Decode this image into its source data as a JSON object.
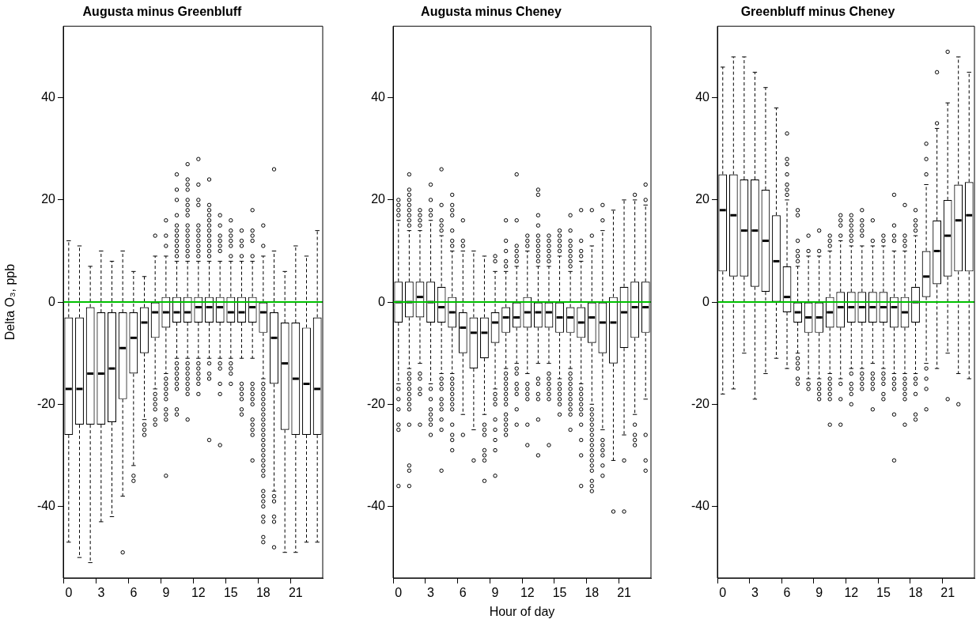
{
  "chart_data": [
    {
      "type": "box",
      "title": "Augusta minus Greenbluff",
      "ylabel": "Delta O₃, ppb",
      "categories": [
        "0",
        null,
        null,
        "3",
        null,
        null,
        "6",
        null,
        null,
        "9",
        null,
        null,
        "12",
        null,
        null,
        "15",
        null,
        null,
        "18",
        null,
        null,
        "21",
        null,
        null
      ],
      "ylim": [
        -54,
        54
      ],
      "yticks": [
        -40,
        -20,
        0,
        20,
        40
      ],
      "ref_lines": [
        {
          "axis": "y",
          "value": 0,
          "color": "#00c000"
        }
      ],
      "boxes": [
        {
          "low": -47,
          "q1": -26,
          "median": -17,
          "q3": -3,
          "high": 12
        },
        {
          "low": -50,
          "q1": -24,
          "median": -17,
          "q3": -3,
          "high": 11
        },
        {
          "low": -51,
          "q1": -24,
          "median": -14,
          "q3": -1,
          "high": 7
        },
        {
          "low": -43,
          "q1": -24,
          "median": -14,
          "q3": -2,
          "high": 10
        },
        {
          "low": -42,
          "q1": -23.5,
          "median": -13,
          "q3": -2,
          "high": 8
        },
        {
          "low": -38,
          "q1": -19,
          "median": -9,
          "q3": -2,
          "high": 10,
          "outliers": [
            -49
          ]
        },
        {
          "low": -32,
          "q1": -14,
          "median": -7,
          "q3": -2,
          "high": 6,
          "outliers": [
            -34,
            -35
          ]
        },
        {
          "low": -23,
          "q1": -10,
          "median": -4,
          "q3": -1,
          "high": 5,
          "outliers": [
            -24,
            -25,
            -26
          ]
        },
        {
          "low": -17,
          "q1": -7,
          "median": -2,
          "q3": 0,
          "high": 9,
          "outliers": [
            13,
            -18,
            -19,
            -20,
            -21,
            -23,
            -24
          ]
        },
        {
          "low": -14,
          "q1": -5,
          "median": -2,
          "q3": 1,
          "high": 9,
          "outliers": [
            16,
            13,
            11,
            -15,
            -16,
            -17,
            -18,
            -19,
            -21,
            -22,
            -23,
            -34
          ]
        },
        {
          "low": -11,
          "q1": -4,
          "median": -2,
          "q3": 1,
          "high": 8,
          "outliers": [
            25,
            22,
            20,
            17,
            15,
            14,
            13,
            12,
            11,
            10,
            9,
            -12,
            -13,
            -14,
            -15,
            -16,
            -17,
            -21,
            -22
          ]
        },
        {
          "low": -11,
          "q1": -4,
          "median": -2,
          "q3": 1,
          "high": 8,
          "outliers": [
            27,
            24,
            23,
            22,
            20,
            19,
            18,
            17,
            15,
            14,
            13,
            12,
            11,
            10,
            9,
            -12,
            -13,
            -14,
            -15,
            -16,
            -17,
            -18,
            -23
          ]
        },
        {
          "low": -11,
          "q1": -4,
          "median": -1,
          "q3": 1,
          "high": 8,
          "outliers": [
            28,
            23,
            20,
            19,
            15,
            14,
            13,
            12,
            11,
            10,
            9,
            -12,
            -13,
            -14,
            -15,
            -16,
            -18
          ]
        },
        {
          "low": -11,
          "q1": -4,
          "median": -1,
          "q3": 1,
          "high": 8,
          "outliers": [
            24,
            19,
            18,
            17,
            16,
            15,
            14,
            13,
            12,
            11,
            10,
            9,
            -12,
            -14,
            -15,
            -27
          ]
        },
        {
          "low": -11,
          "q1": -4,
          "median": -1,
          "q3": 1,
          "high": 8,
          "outliers": [
            17,
            15,
            13,
            12,
            11,
            10,
            -12,
            -13,
            -16,
            -18,
            -28
          ]
        },
        {
          "low": -11,
          "q1": -4,
          "median": -2,
          "q3": 1,
          "high": 8,
          "outliers": [
            16,
            14,
            13,
            12,
            11,
            9,
            -12,
            -13,
            -14,
            -16
          ]
        },
        {
          "low": -11,
          "q1": -4,
          "median": -2,
          "q3": 1,
          "high": 8,
          "outliers": [
            14,
            12,
            11,
            9,
            -16,
            -17,
            -18,
            -19,
            -21,
            -22
          ]
        },
        {
          "low": -11,
          "q1": -4,
          "median": -1,
          "q3": 1,
          "high": 8,
          "outliers": [
            18,
            14,
            13,
            12,
            9,
            -16,
            -17,
            -18,
            -19,
            -20,
            -23,
            -24,
            -25,
            -26,
            -31
          ]
        },
        {
          "low": -15,
          "q1": -6,
          "median": -2,
          "q3": 0,
          "high": 9,
          "outliers": [
            15,
            11,
            -16,
            -17,
            -18,
            -19,
            -20,
            -21,
            -22,
            -23,
            -24,
            -25,
            -26,
            -27,
            -28,
            -29,
            -30,
            -31,
            -32,
            -33,
            -34,
            -37,
            -38,
            -39,
            -40,
            -42,
            -43,
            -46,
            -47
          ]
        },
        {
          "low": -37,
          "q1": -16,
          "median": -7,
          "q3": -2,
          "high": 10,
          "outliers": [
            26,
            -38,
            -39,
            -42,
            -43,
            -48
          ]
        },
        {
          "low": -49,
          "q1": -25,
          "median": -12,
          "q3": -4,
          "high": 6
        },
        {
          "low": -49,
          "q1": -26,
          "median": -15,
          "q3": -4,
          "high": 11
        },
        {
          "low": -47,
          "q1": -26,
          "median": -16,
          "q3": -5,
          "high": 9
        },
        {
          "low": -47,
          "q1": -26,
          "median": -17,
          "q3": -3,
          "high": 14
        }
      ]
    },
    {
      "type": "box",
      "title": "Augusta minus Cheney",
      "xlabel": "Hour of day",
      "categories": [
        "0",
        null,
        null,
        "3",
        null,
        null,
        "6",
        null,
        null,
        "9",
        null,
        null,
        "12",
        null,
        null,
        "15",
        null,
        null,
        "18",
        null,
        null,
        "21",
        null,
        null
      ],
      "ylim": [
        -54,
        54
      ],
      "yticks": [
        -40,
        -20,
        0,
        20,
        40
      ],
      "ref_lines": [
        {
          "axis": "y",
          "value": 0,
          "color": "#00c000"
        }
      ],
      "boxes": [
        {
          "low": -16,
          "q1": -4,
          "median": 0,
          "q3": 4,
          "high": 16,
          "outliers": [
            20,
            19,
            18,
            17,
            -17,
            -19,
            -21,
            -24,
            -25,
            -36
          ]
        },
        {
          "low": -13,
          "q1": -3,
          "median": 0,
          "q3": 4,
          "high": 14,
          "outliers": [
            25,
            22,
            21,
            20,
            19,
            18,
            17,
            16,
            15,
            -14,
            -15,
            -16,
            -17,
            -18,
            -19,
            -20,
            -21,
            -24,
            -32,
            -33,
            -36
          ]
        },
        {
          "low": -12,
          "q1": -3,
          "median": 1,
          "q3": 4,
          "high": 14,
          "outliers": [
            18,
            17,
            16,
            15,
            -14,
            -15,
            -17,
            -18,
            -24
          ]
        },
        {
          "low": -16,
          "q1": -4,
          "median": 0,
          "q3": 4,
          "high": 16,
          "outliers": [
            23,
            20,
            18,
            17,
            -17,
            -19,
            -21,
            -22,
            -23,
            -24,
            -26
          ]
        },
        {
          "low": -14,
          "q1": -4,
          "median": -1,
          "q3": 3,
          "high": 13,
          "outliers": [
            26,
            19,
            16,
            15,
            14,
            -15,
            -16,
            -17,
            -19,
            -20,
            -21,
            -23,
            -25,
            -33
          ]
        },
        {
          "low": -14,
          "q1": -5,
          "median": -2,
          "q3": 1,
          "high": 10,
          "outliers": [
            21,
            19,
            18,
            17,
            14,
            12,
            11,
            -15,
            -16,
            -17,
            -18,
            -19,
            -20,
            -21,
            -24,
            -26,
            -27,
            -29
          ]
        },
        {
          "low": -22,
          "q1": -10,
          "median": -5,
          "q3": -2,
          "high": 10,
          "outliers": [
            16,
            12,
            11,
            -26
          ]
        },
        {
          "low": -25,
          "q1": -13,
          "median": -6,
          "q3": -3,
          "high": 10,
          "outliers": [
            -31
          ]
        },
        {
          "low": -22,
          "q1": -11,
          "median": -6,
          "q3": -3,
          "high": 9,
          "outliers": [
            -24,
            -25,
            -26,
            -29,
            -30,
            -31,
            -35
          ]
        },
        {
          "low": -17,
          "q1": -8,
          "median": -4,
          "q3": -2,
          "high": 6,
          "outliers": [
            9,
            8,
            -18,
            -19,
            -20,
            -23,
            -25,
            -27,
            -29,
            -34
          ]
        },
        {
          "low": -13,
          "q1": -6,
          "median": -3,
          "q3": -1,
          "high": 6,
          "outliers": [
            16,
            12,
            10,
            8,
            7,
            -14,
            -15,
            -16,
            -17,
            -18,
            -19,
            -20,
            -22,
            -23,
            -24,
            -25,
            -26
          ]
        },
        {
          "low": -12,
          "q1": -5,
          "median": -3,
          "q3": 0,
          "high": 7,
          "outliers": [
            25,
            16,
            11,
            10,
            9,
            8,
            -13,
            -14,
            -16,
            -17,
            -18,
            -21,
            -24
          ]
        },
        {
          "low": -14,
          "q1": -5,
          "median": -2,
          "q3": 1,
          "high": 10,
          "outliers": [
            13,
            12,
            11,
            -16,
            -17,
            -18,
            -19,
            -24,
            -28
          ]
        },
        {
          "low": -12,
          "q1": -5,
          "median": -2,
          "q3": 0,
          "high": 7,
          "outliers": [
            22,
            21,
            17,
            15,
            13,
            12,
            11,
            10,
            9,
            8,
            -15,
            -16,
            -18,
            -19,
            -23,
            -30
          ]
        },
        {
          "low": -12,
          "q1": -5,
          "median": -2,
          "q3": 0,
          "high": 7,
          "outliers": [
            13,
            12,
            11,
            10,
            9,
            8,
            -14,
            -15,
            -16,
            -17,
            -18,
            -19,
            -28
          ]
        },
        {
          "low": -15,
          "q1": -6,
          "median": -3,
          "q3": 0,
          "high": 9,
          "outliers": [
            14,
            13,
            12,
            11,
            10,
            -16,
            -17,
            -18,
            -19,
            -20,
            -22
          ]
        },
        {
          "low": -13,
          "q1": -6,
          "median": -3,
          "q3": -1,
          "high": 6,
          "outliers": [
            17,
            14,
            12,
            11,
            10,
            9,
            8,
            7,
            -14,
            -15,
            -16,
            -17,
            -18,
            -19,
            -20,
            -21,
            -22,
            -25
          ]
        },
        {
          "low": -16,
          "q1": -7,
          "median": -4,
          "q3": -1,
          "high": 8,
          "outliers": [
            18,
            12,
            10,
            9,
            -17,
            -18,
            -19,
            -20,
            -21,
            -22,
            -24,
            -27,
            -30,
            -36
          ]
        },
        {
          "low": -20,
          "q1": -8,
          "median": -3,
          "q3": 0,
          "high": 11,
          "outliers": [
            18,
            13,
            -21,
            -22,
            -23,
            -24,
            -25,
            -26,
            -27,
            -28,
            -29,
            -30,
            -31,
            -32,
            -33,
            -35,
            -36,
            -37
          ]
        },
        {
          "low": -25,
          "q1": -10,
          "median": -4,
          "q3": 0,
          "high": 14,
          "outliers": [
            19,
            16,
            -27,
            -28,
            -29,
            -30,
            -32,
            -34
          ]
        },
        {
          "low": -31,
          "q1": -12,
          "median": -4,
          "q3": 1,
          "high": 18,
          "outliers": [
            -41
          ]
        },
        {
          "low": -26,
          "q1": -9,
          "median": -2,
          "q3": 3,
          "high": 20,
          "outliers": [
            -31,
            -41
          ]
        },
        {
          "low": -22,
          "q1": -7,
          "median": -1,
          "q3": 4,
          "high": 20,
          "outliers": [
            21,
            -24,
            -26,
            -27,
            -28
          ]
        },
        {
          "low": -19,
          "q1": -6,
          "median": -1,
          "q3": 4,
          "high": 19,
          "outliers": [
            23,
            20,
            -26,
            -31,
            -33
          ]
        }
      ]
    },
    {
      "type": "box",
      "title": "Greenbluff minus Cheney",
      "categories": [
        "0",
        null,
        null,
        "3",
        null,
        null,
        "6",
        null,
        null,
        "9",
        null,
        null,
        "12",
        null,
        null,
        "15",
        null,
        null,
        "18",
        null,
        null,
        "21",
        null,
        null
      ],
      "ylim": [
        -54,
        54
      ],
      "yticks": [
        -40,
        -20,
        0,
        20,
        40
      ],
      "ref_lines": [
        {
          "axis": "y",
          "value": 0,
          "color": "#00c000"
        }
      ],
      "boxes": [
        {
          "low": -18,
          "q1": 6,
          "median": 18,
          "q3": 25,
          "high": 46
        },
        {
          "low": -17,
          "q1": 5,
          "median": 17,
          "q3": 25,
          "high": 48
        },
        {
          "low": -10,
          "q1": 5,
          "median": 14,
          "q3": 24,
          "high": 48
        },
        {
          "low": -19,
          "q1": 3,
          "median": 14,
          "q3": 24,
          "high": 45
        },
        {
          "low": -14,
          "q1": 2,
          "median": 12,
          "q3": 22,
          "high": 42
        },
        {
          "low": -11,
          "q1": 0,
          "median": 8,
          "q3": 17,
          "high": 38
        },
        {
          "low": -13,
          "q1": -2,
          "median": 1,
          "q3": 7,
          "high": 20,
          "outliers": [
            33,
            28,
            27,
            25,
            23,
            22,
            21
          ]
        },
        {
          "low": -10,
          "q1": -4,
          "median": -2,
          "q3": 0,
          "high": 7,
          "outliers": [
            18,
            17,
            12,
            10,
            9,
            8,
            -11,
            -12,
            -13,
            -15,
            -16
          ]
        },
        {
          "low": -15,
          "q1": -6,
          "median": -3,
          "q3": 0,
          "high": 9,
          "outliers": [
            13,
            10,
            -16,
            -17
          ]
        },
        {
          "low": -15,
          "q1": -6,
          "median": -3,
          "q3": 0,
          "high": 9,
          "outliers": [
            14,
            10,
            -16,
            -17,
            -18,
            -19
          ]
        },
        {
          "low": -14,
          "q1": -5,
          "median": -2,
          "q3": 1,
          "high": 10,
          "outliers": [
            13,
            12,
            11,
            -15,
            -16,
            -17,
            -18,
            -19,
            -24
          ]
        },
        {
          "low": -15,
          "q1": -5,
          "median": -1,
          "q3": 2,
          "high": 12,
          "outliers": [
            17,
            16,
            15,
            13,
            -16,
            -19,
            -24
          ]
        },
        {
          "low": -13,
          "q1": -4,
          "median": -1,
          "q3": 2,
          "high": 11,
          "outliers": [
            17,
            16,
            15,
            14,
            13,
            12,
            -14,
            -16,
            -17,
            -18,
            -20
          ]
        },
        {
          "low": -13,
          "q1": -4,
          "median": -1,
          "q3": 2,
          "high": 11,
          "outliers": [
            18,
            16,
            15,
            14,
            13,
            -14,
            -15,
            -16,
            -17
          ]
        },
        {
          "low": -12,
          "q1": -4,
          "median": -1,
          "q3": 2,
          "high": 11,
          "outliers": [
            16,
            12,
            -14,
            -15,
            -16,
            -17,
            -21
          ]
        },
        {
          "low": -13,
          "q1": -4,
          "median": -1,
          "q3": 2,
          "high": 11,
          "outliers": [
            13,
            12,
            -14,
            -15,
            -16,
            -18,
            -19
          ]
        },
        {
          "low": -14,
          "q1": -5,
          "median": -1,
          "q3": 1,
          "high": 10,
          "outliers": [
            21,
            15,
            13,
            12,
            -15,
            -16,
            -17,
            -22,
            -31
          ]
        },
        {
          "low": -14,
          "q1": -5,
          "median": -2,
          "q3": 1,
          "high": 10,
          "outliers": [
            19,
            13,
            12,
            11,
            -15,
            -16,
            -17,
            -18,
            -19,
            -24
          ]
        },
        {
          "low": -14,
          "q1": -4,
          "median": 0,
          "q3": 3,
          "high": 13,
          "outliers": [
            18,
            16,
            15,
            14,
            -15,
            -16,
            -18,
            -22,
            -23
          ]
        },
        {
          "low": -12,
          "q1": 1,
          "median": 5,
          "q3": 10,
          "high": 23,
          "outliers": [
            31,
            28,
            25,
            -13,
            -15,
            -17,
            -21
          ]
        },
        {
          "low": -13,
          "q1": 3.5,
          "median": 10,
          "q3": 16,
          "high": 34,
          "outliers": [
            45,
            35
          ]
        },
        {
          "low": -10,
          "q1": 5,
          "median": 13,
          "q3": 20,
          "high": 39,
          "outliers": [
            49,
            -19
          ]
        },
        {
          "low": -14,
          "q1": 6,
          "median": 16,
          "q3": 23,
          "high": 48,
          "outliers": [
            -20
          ]
        },
        {
          "low": -15,
          "q1": 6,
          "median": 17,
          "q3": 23.5,
          "high": 45
        }
      ]
    }
  ]
}
